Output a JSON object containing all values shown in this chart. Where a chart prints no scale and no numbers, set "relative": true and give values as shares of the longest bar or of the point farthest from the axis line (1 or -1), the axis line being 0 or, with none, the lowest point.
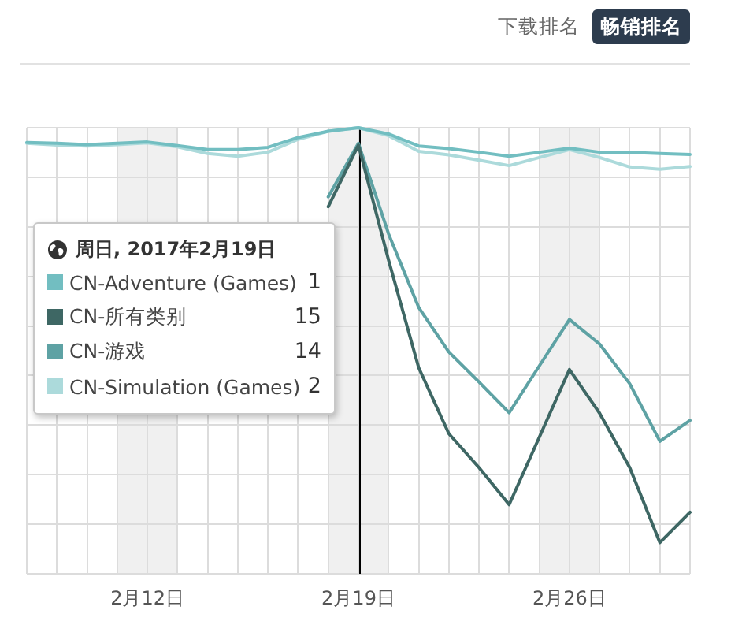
{
  "chart_data": {
    "type": "line",
    "relative": true,
    "x": [
      "2017-02-08",
      "2017-02-09",
      "2017-02-10",
      "2017-02-11",
      "2017-02-12",
      "2017-02-13",
      "2017-02-14",
      "2017-02-15",
      "2017-02-16",
      "2017-02-17",
      "2017-02-18",
      "2017-02-19",
      "2017-02-20",
      "2017-02-21",
      "2017-02-22",
      "2017-02-23",
      "2017-02-24",
      "2017-02-25",
      "2017-02-26",
      "2017-02-27",
      "2017-02-28",
      "2017-03-01",
      "2017-03-02"
    ],
    "xlim": [
      "2017-02-08",
      "2017-03-02"
    ],
    "xticks": [
      {
        "value": "2017-02-08",
        "label": null
      },
      {
        "value": "2017-02-09",
        "label": null
      },
      {
        "value": "2017-02-10",
        "label": null
      },
      {
        "value": "2017-02-11",
        "label": null
      },
      {
        "value": "2017-02-12",
        "label": "2月12日"
      },
      {
        "value": "2017-02-13",
        "label": null
      },
      {
        "value": "2017-02-14",
        "label": null
      },
      {
        "value": "2017-02-15",
        "label": null
      },
      {
        "value": "2017-02-16",
        "label": null
      },
      {
        "value": "2017-02-17",
        "label": null
      },
      {
        "value": "2017-02-18",
        "label": null
      },
      {
        "value": "2017-02-19",
        "label": "2月19日"
      },
      {
        "value": "2017-02-20",
        "label": null
      },
      {
        "value": "2017-02-21",
        "label": null
      },
      {
        "value": "2017-02-22",
        "label": null
      },
      {
        "value": "2017-02-23",
        "label": null
      },
      {
        "value": "2017-02-24",
        "label": null
      },
      {
        "value": "2017-02-25",
        "label": null
      },
      {
        "value": "2017-02-26",
        "label": "2月26日"
      },
      {
        "value": "2017-02-27",
        "label": null
      },
      {
        "value": "2017-02-28",
        "label": null
      },
      {
        "value": "2017-03-01",
        "label": null
      },
      {
        "value": "2017-03-02",
        "label": null
      }
    ],
    "series": [
      {
        "name": "CN-Adventure (Games)",
        "color": "#72bec1",
        "values": [
          0.967,
          0.965,
          0.962,
          0.965,
          0.968,
          0.96,
          0.951,
          0.951,
          0.956,
          0.978,
          0.992,
          1,
          0.986,
          0.959,
          0.953,
          0.945,
          0.936,
          0.945,
          0.954,
          0.945,
          0.945,
          0.942,
          0.94
        ]
      },
      {
        "name": "CN-所有类别",
        "color": "#3e6764",
        "values": [
          null,
          null,
          null,
          null,
          null,
          null,
          null,
          null,
          null,
          null,
          0.823,
          0.961,
          0.703,
          0.462,
          0.314,
          0.238,
          0.155,
          0.306,
          0.458,
          0.36,
          0.238,
          0.07,
          0.138
        ]
      },
      {
        "name": "CN-游戏",
        "color": "#5ea2a4",
        "values": [
          null,
          null,
          null,
          null,
          null,
          null,
          null,
          null,
          null,
          null,
          0.845,
          0.965,
          0.762,
          0.597,
          0.497,
          0.43,
          0.361,
          0.466,
          0.57,
          0.515,
          0.426,
          0.297,
          0.344
        ]
      },
      {
        "name": "CN-Simulation (Games)",
        "color": "#acdadb",
        "values": [
          0.965,
          0.961,
          0.959,
          0.962,
          0.966,
          0.957,
          0.942,
          0.936,
          0.945,
          0.974,
          0.992,
          1,
          0.982,
          0.947,
          0.939,
          0.927,
          0.915,
          0.933,
          0.951,
          0.933,
          0.912,
          0.907,
          0.913
        ]
      }
    ],
    "legend": "left",
    "legend_title": "周日, 2017年2月19日",
    "annotations": [
      "下载排名",
      "畅销排名",
      "1",
      "15",
      "14",
      "2"
    ],
    "bands": [
      {
        "axis": "x",
        "from": "2017-02-11",
        "to": "2017-02-13",
        "color": "#f0f0f0"
      },
      {
        "axis": "x",
        "from": "2017-02-18",
        "to": "2017-02-20",
        "color": "#f0f0f0"
      },
      {
        "axis": "x",
        "from": "2017-02-25",
        "to": "2017-02-27",
        "color": "#f0f0f0"
      }
    ],
    "ref_lines": [
      {
        "axis": "x",
        "value": "2017-02-19",
        "color": "#000000"
      }
    ],
    "grid": true,
    "marker": "none",
    "line_style": "solid"
  }
}
